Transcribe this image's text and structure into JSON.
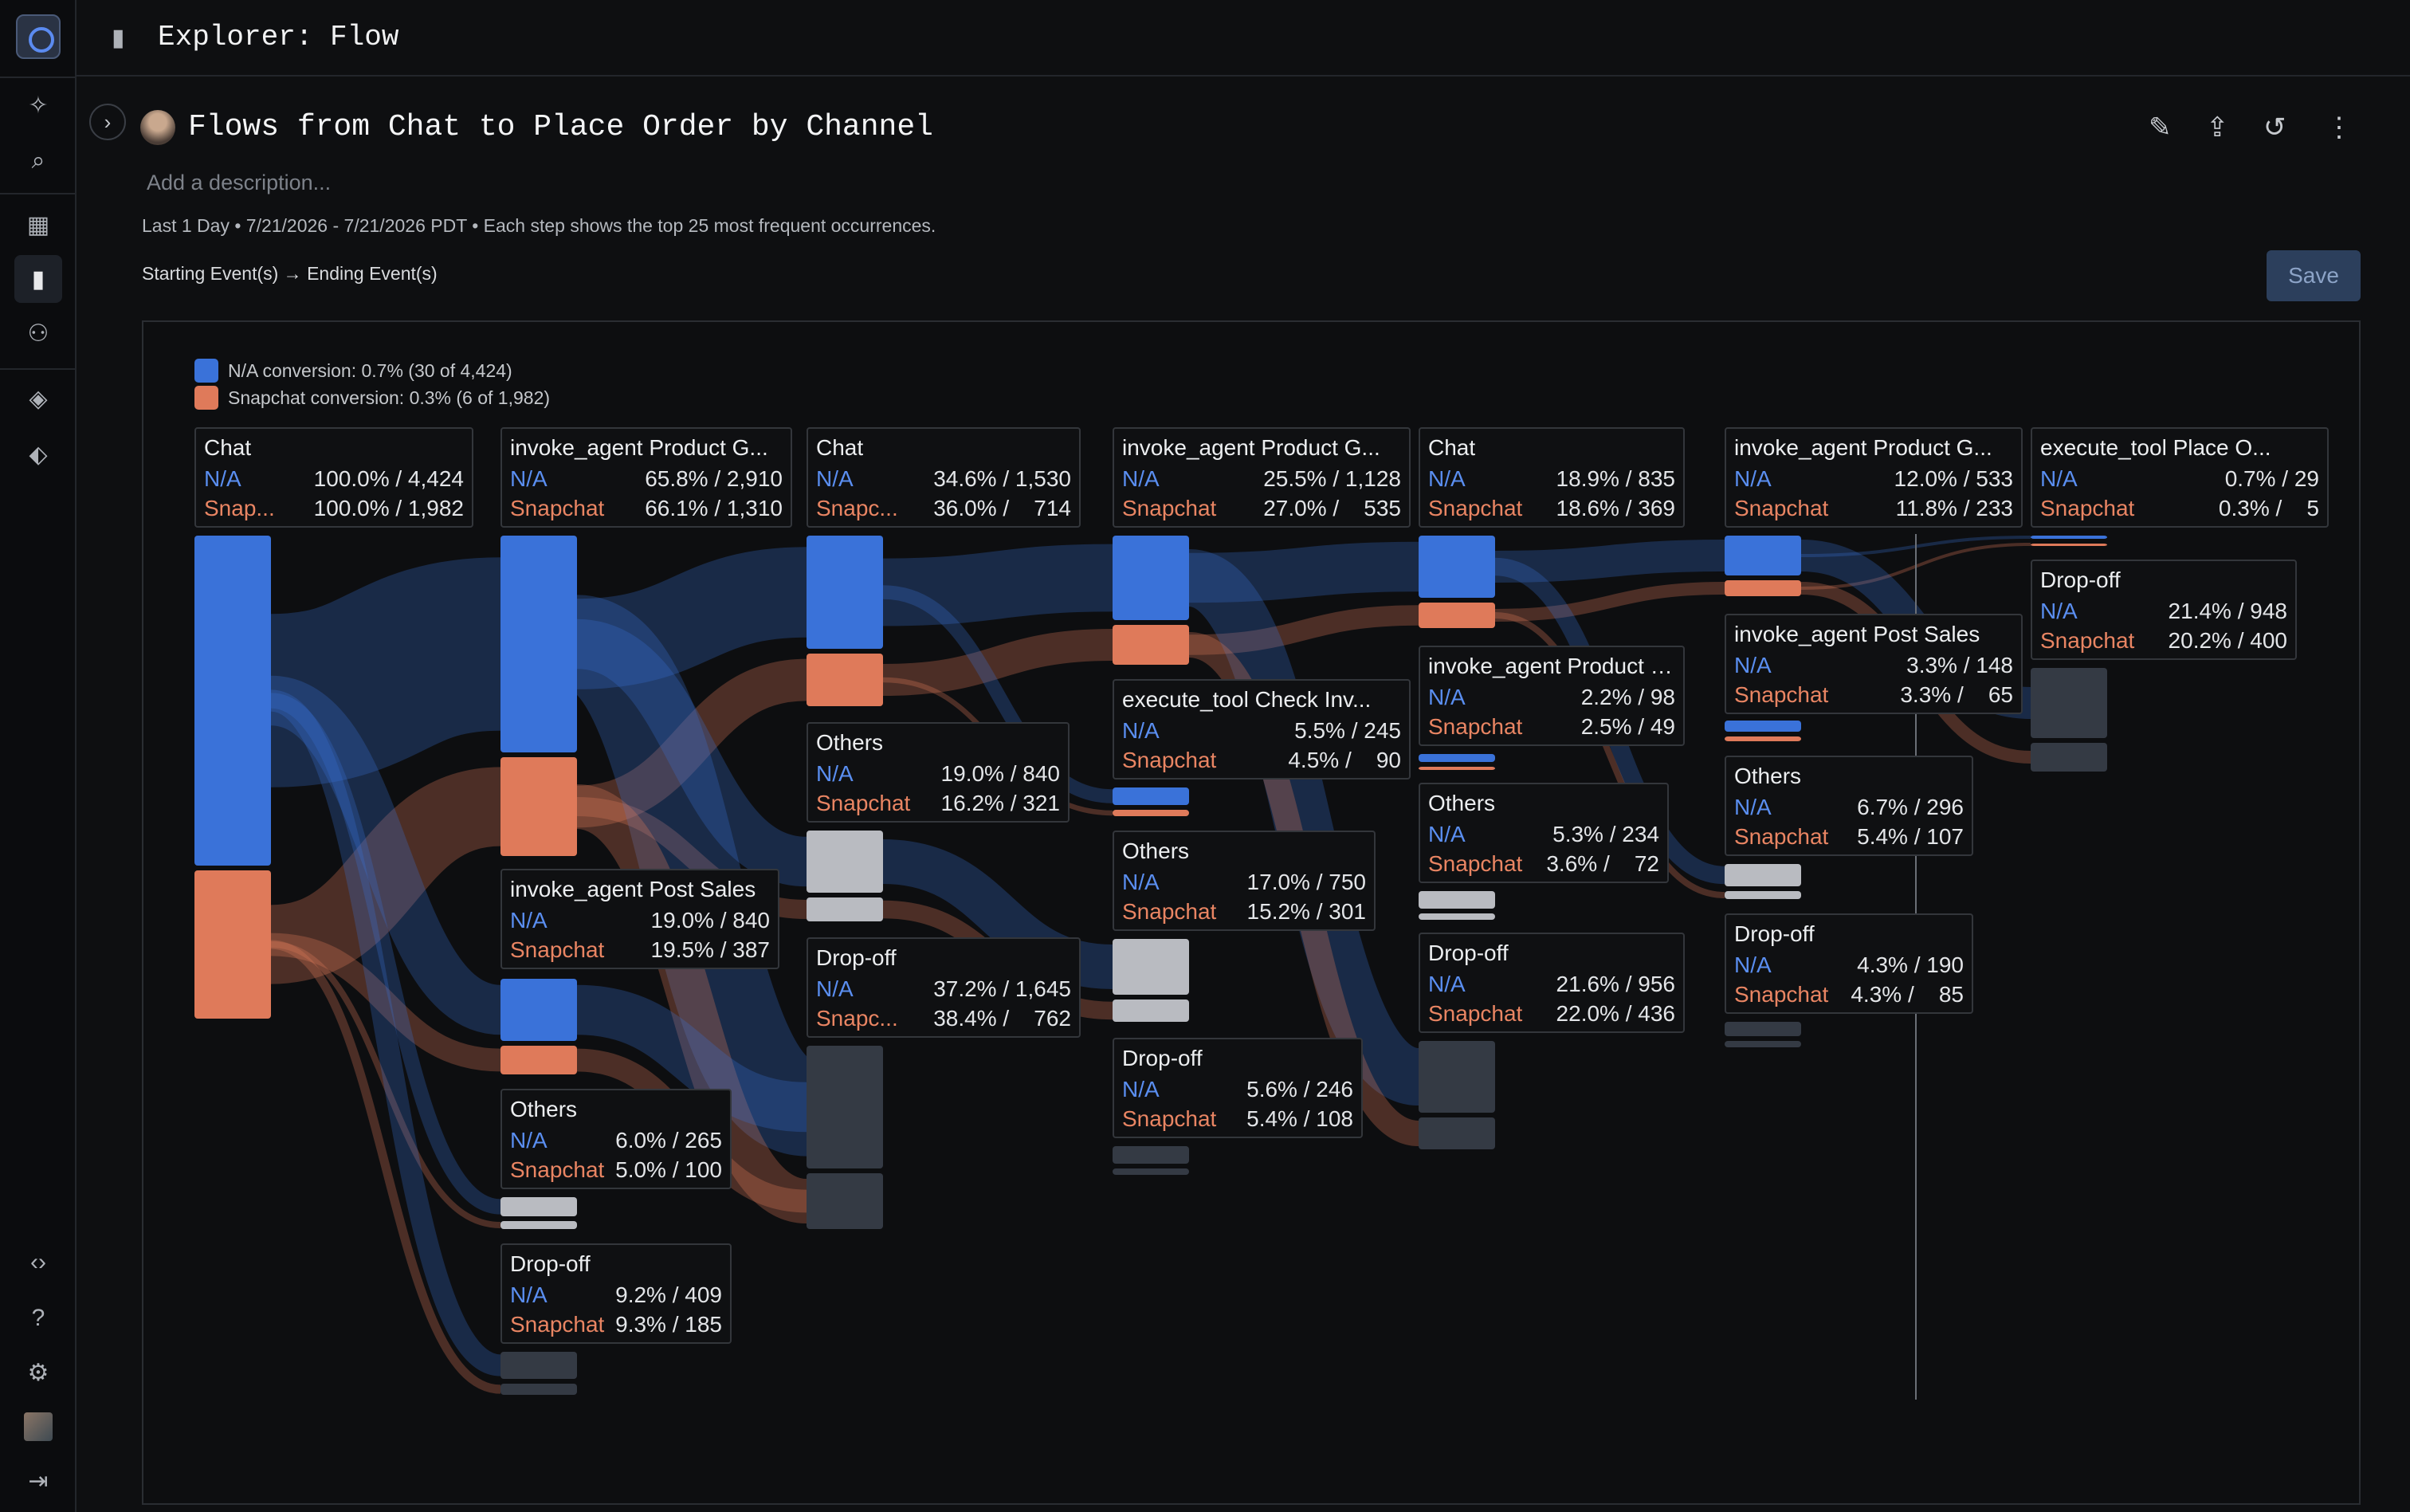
{
  "topbar": {
    "title": "Explorer: Flow"
  },
  "report": {
    "title": "Flows from Chat to Place Order by Channel",
    "description_placeholder": "Add a description...",
    "meta": "Last 1 Day • 7/21/2026 - 7/21/2026 PDT • Each step shows the top 25 most frequent occurrences.",
    "steps_label": "Starting Event(s) → Ending Event(s)",
    "save_label": "Save"
  },
  "colors": {
    "na": "#3a72d9",
    "snapchat": "#df7a5a",
    "others": "#b9bbc1",
    "dropoff": "#343a44"
  },
  "legend": [
    {
      "label": "N/A conversion: 0.7% (30 of 4,424)",
      "color": "#3a72d9"
    },
    {
      "label": "Snapchat conversion: 0.3% (6 of 1,982)",
      "color": "#df7a5a"
    }
  ],
  "chart_data": {
    "type": "sankey",
    "series": [
      {
        "name": "N/A"
      },
      {
        "name": "Snapchat"
      }
    ],
    "nodes": [
      {
        "id": "s0-chat",
        "step": 0,
        "name": "Chat",
        "rows": [
          {
            "series": "N/A",
            "label": "N/A",
            "value": "100.0% / 4,424"
          },
          {
            "series": "Snapchat",
            "label": "Snap...",
            "value": "100.0% / 1,982"
          }
        ]
      },
      {
        "id": "s1-product",
        "step": 1,
        "name": "invoke_agent Product G...",
        "rows": [
          {
            "series": "N/A",
            "label": "N/A",
            "value": "65.8% / 2,910"
          },
          {
            "series": "Snapchat",
            "label": "Snapchat",
            "value": "66.1% / 1,310"
          }
        ]
      },
      {
        "id": "s1-postsales",
        "step": 1,
        "name": "invoke_agent Post Sales",
        "rows": [
          {
            "series": "N/A",
            "label": "N/A",
            "value": "19.0% / 840"
          },
          {
            "series": "Snapchat",
            "label": "Snapchat",
            "value": "19.5% / 387"
          }
        ]
      },
      {
        "id": "s1-others",
        "step": 1,
        "name": "Others",
        "rows": [
          {
            "series": "N/A",
            "label": "N/A",
            "value": "6.0% / 265"
          },
          {
            "series": "Snapchat",
            "label": "Snapchat",
            "value": "5.0% / 100"
          }
        ]
      },
      {
        "id": "s1-dropoff",
        "step": 1,
        "name": "Drop-off",
        "rows": [
          {
            "series": "N/A",
            "label": "N/A",
            "value": "9.2% / 409"
          },
          {
            "series": "Snapchat",
            "label": "Snapchat",
            "value": "9.3% / 185"
          }
        ]
      },
      {
        "id": "s2-chat",
        "step": 2,
        "name": "Chat",
        "rows": [
          {
            "series": "N/A",
            "label": "N/A",
            "value": "34.6% / 1,530"
          },
          {
            "series": "Snapchat",
            "label": "Snapc...",
            "value": "36.0% /    714"
          }
        ]
      },
      {
        "id": "s2-others",
        "step": 2,
        "name": "Others",
        "rows": [
          {
            "series": "N/A",
            "label": "N/A",
            "value": "19.0% / 840"
          },
          {
            "series": "Snapchat",
            "label": "Snapchat",
            "value": "16.2% / 321"
          }
        ]
      },
      {
        "id": "s2-dropoff",
        "step": 2,
        "name": "Drop-off",
        "rows": [
          {
            "series": "N/A",
            "label": "N/A",
            "value": "37.2% / 1,645"
          },
          {
            "series": "Snapchat",
            "label": "Snapc...",
            "value": "38.4% /    762"
          }
        ]
      },
      {
        "id": "s3-product",
        "step": 3,
        "name": "invoke_agent Product G...",
        "rows": [
          {
            "series": "N/A",
            "label": "N/A",
            "value": "25.5% / 1,128"
          },
          {
            "series": "Snapchat",
            "label": "Snapchat",
            "value": "27.0% /    535"
          }
        ]
      },
      {
        "id": "s3-checkinv",
        "step": 3,
        "name": "execute_tool Check Inv...",
        "rows": [
          {
            "series": "N/A",
            "label": "N/A",
            "value": "5.5% / 245"
          },
          {
            "series": "Snapchat",
            "label": "Snapchat",
            "value": "4.5% /    90"
          }
        ]
      },
      {
        "id": "s3-others",
        "step": 3,
        "name": "Others",
        "rows": [
          {
            "series": "N/A",
            "label": "N/A",
            "value": "17.0% / 750"
          },
          {
            "series": "Snapchat",
            "label": "Snapchat",
            "value": "15.2% / 301"
          }
        ]
      },
      {
        "id": "s3-dropoff",
        "step": 3,
        "name": "Drop-off",
        "rows": [
          {
            "series": "N/A",
            "label": "N/A",
            "value": "5.6% / 246"
          },
          {
            "series": "Snapchat",
            "label": "Snapchat",
            "value": "5.4% / 108"
          }
        ]
      },
      {
        "id": "s4-chat",
        "step": 4,
        "name": "Chat",
        "rows": [
          {
            "series": "N/A",
            "label": "N/A",
            "value": "18.9% / 835"
          },
          {
            "series": "Snapchat",
            "label": "Snapchat",
            "value": "18.6% / 369"
          }
        ]
      },
      {
        "id": "s4-product",
        "step": 4,
        "name": "invoke_agent Product G...",
        "rows": [
          {
            "series": "N/A",
            "label": "N/A",
            "value": "2.2% / 98"
          },
          {
            "series": "Snapchat",
            "label": "Snapchat",
            "value": "2.5% / 49"
          }
        ]
      },
      {
        "id": "s4-others",
        "step": 4,
        "name": "Others",
        "rows": [
          {
            "series": "N/A",
            "label": "N/A",
            "value": "5.3% / 234"
          },
          {
            "series": "Snapchat",
            "label": "Snapchat",
            "value": "3.6% /    72"
          }
        ]
      },
      {
        "id": "s4-dropoff",
        "step": 4,
        "name": "Drop-off",
        "rows": [
          {
            "series": "N/A",
            "label": "N/A",
            "value": "21.6% / 956"
          },
          {
            "series": "Snapchat",
            "label": "Snapchat",
            "value": "22.0% / 436"
          }
        ]
      },
      {
        "id": "s5-product",
        "step": 5,
        "name": "invoke_agent Product G...",
        "rows": [
          {
            "series": "N/A",
            "label": "N/A",
            "value": "12.0% / 533"
          },
          {
            "series": "Snapchat",
            "label": "Snapchat",
            "value": "11.8% / 233"
          }
        ]
      },
      {
        "id": "s5-postsales",
        "step": 5,
        "name": "invoke_agent Post Sales",
        "rows": [
          {
            "series": "N/A",
            "label": "N/A",
            "value": "3.3% / 148"
          },
          {
            "series": "Snapchat",
            "label": "Snapchat",
            "value": "3.3% /    65"
          }
        ]
      },
      {
        "id": "s5-others",
        "step": 5,
        "name": "Others",
        "rows": [
          {
            "series": "N/A",
            "label": "N/A",
            "value": "6.7% / 296"
          },
          {
            "series": "Snapchat",
            "label": "Snapchat",
            "value": "5.4% / 107"
          }
        ]
      },
      {
        "id": "s5-dropoff",
        "step": 5,
        "name": "Drop-off",
        "rows": [
          {
            "series": "N/A",
            "label": "N/A",
            "value": "4.3% / 190"
          },
          {
            "series": "Snapchat",
            "label": "Snapchat",
            "value": "4.3% /    85"
          }
        ]
      },
      {
        "id": "s6-placeorder",
        "step": 6,
        "name": "execute_tool Place O...",
        "rows": [
          {
            "series": "N/A",
            "label": "N/A",
            "value": "0.7% / 29"
          },
          {
            "series": "Snapchat",
            "label": "Snapchat",
            "value": "0.3% /    5"
          }
        ]
      },
      {
        "id": "s6-dropoff",
        "step": 6,
        "name": "Drop-off",
        "rows": [
          {
            "series": "N/A",
            "label": "N/A",
            "value": "21.4% / 948"
          },
          {
            "series": "Snapchat",
            "label": "Snapchat",
            "value": "20.2% / 400"
          }
        ]
      }
    ],
    "links": [
      {
        "from": "s0-chat",
        "to": "s1-product"
      },
      {
        "from": "s0-chat",
        "to": "s1-postsales"
      },
      {
        "from": "s0-chat",
        "to": "s1-others"
      },
      {
        "from": "s0-chat",
        "to": "s1-dropoff"
      },
      {
        "from": "s1-product",
        "to": "s2-chat"
      },
      {
        "from": "s1-product",
        "to": "s2-others"
      },
      {
        "from": "s1-product",
        "to": "s2-dropoff"
      },
      {
        "from": "s1-postsales",
        "to": "s2-dropoff"
      },
      {
        "from": "s2-chat",
        "to": "s3-product"
      },
      {
        "from": "s2-chat",
        "to": "s3-checkinv"
      },
      {
        "from": "s2-others",
        "to": "s3-others"
      },
      {
        "from": "s3-product",
        "to": "s4-chat"
      },
      {
        "from": "s3-product",
        "to": "s4-dropoff"
      },
      {
        "from": "s4-chat",
        "to": "s5-product"
      },
      {
        "from": "s4-chat",
        "to": "s5-others"
      },
      {
        "from": "s5-product",
        "to": "s6-placeorder"
      },
      {
        "from": "s5-product",
        "to": "s6-dropoff"
      }
    ]
  }
}
